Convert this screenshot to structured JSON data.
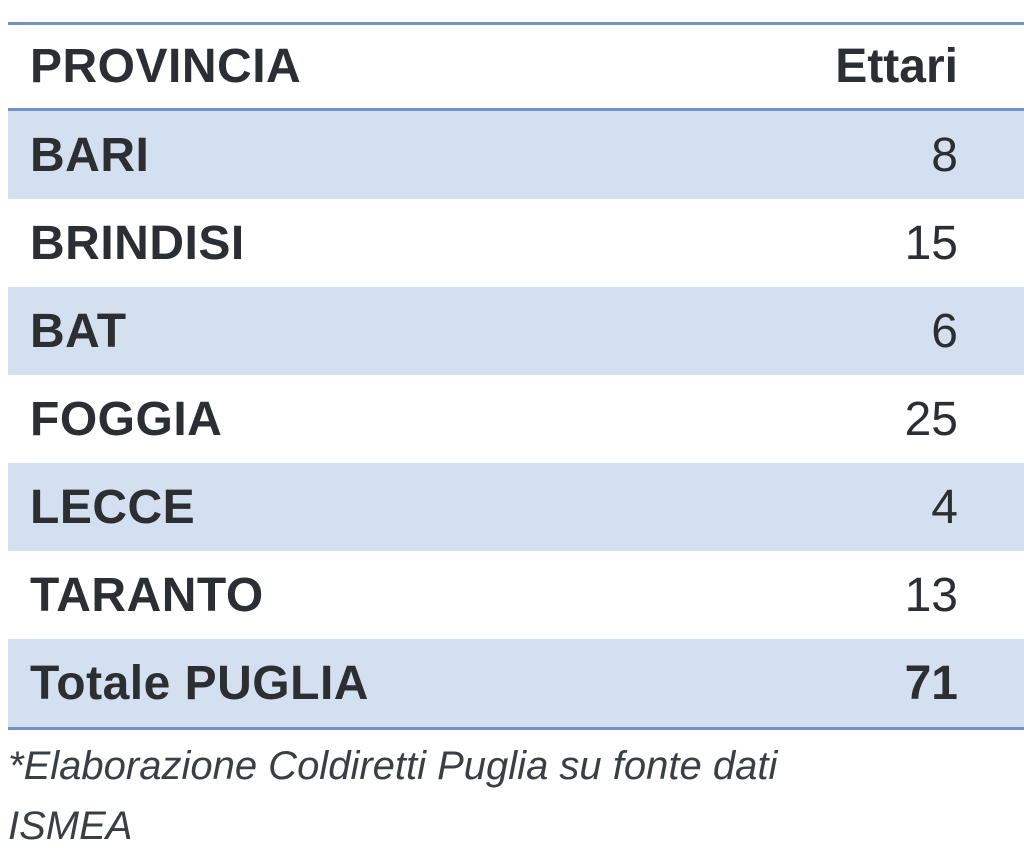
{
  "table": {
    "header": {
      "name": "PROVINCIA",
      "value": "Ettari"
    },
    "rows": [
      {
        "name": "BARI",
        "value": "8"
      },
      {
        "name": "BRINDISI",
        "value": "15"
      },
      {
        "name": "BAT",
        "value": "6"
      },
      {
        "name": "FOGGIA",
        "value": "25"
      },
      {
        "name": "LECCE",
        "value": "4"
      },
      {
        "name": "TARANTO",
        "value": "13"
      }
    ],
    "total": {
      "name": "Totale PUGLIA",
      "value": "71"
    }
  },
  "footnote": "*Elaborazione Coldiretti Puglia su fonte dati ISMEA",
  "colors": {
    "rule": "#6f94c4",
    "shaded_row": "#d4dfef",
    "text": "#2b2f33"
  }
}
